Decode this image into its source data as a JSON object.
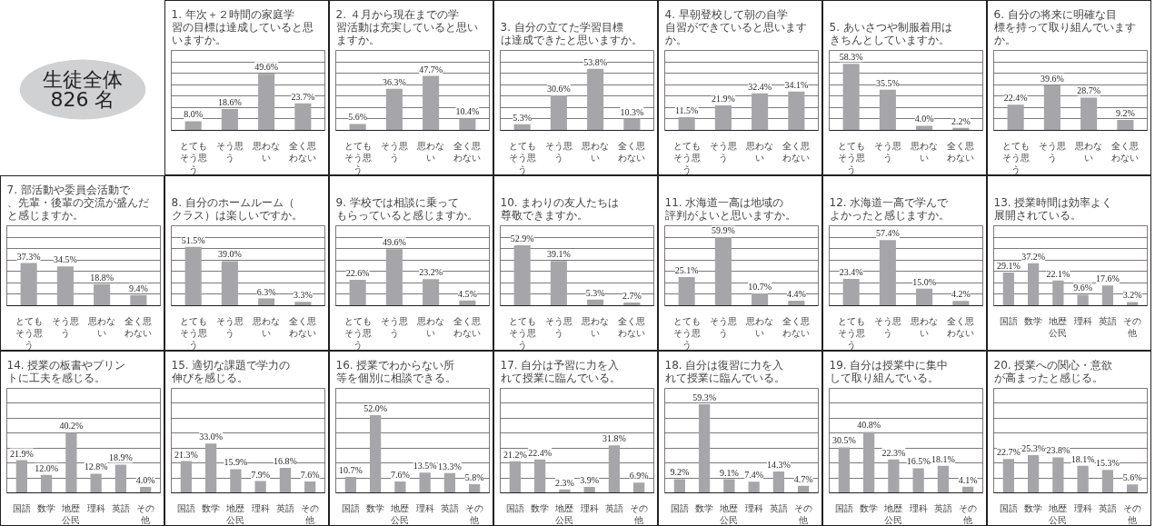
{
  "chart_data": [
    {
      "type": "other",
      "annotations": [
        "生徒全体",
        "826 名"
      ],
      "color": "#d0d1d3"
    },
    {
      "type": "bar",
      "title": "1. 年次＋２時間の家庭学習の目標は達成していると思いますか。",
      "categories": [
        "とてもそう思う",
        "そう思う",
        "思わない",
        "全く思わない"
      ],
      "values": [
        8.0,
        18.6,
        49.6,
        23.7
      ],
      "value_labels": [
        "8.0%",
        "18.6%",
        "49.6%",
        "23.7%"
      ],
      "color": "#a6a6aa",
      "ylim": [
        0,
        70
      ],
      "yticks": [
        {
          "value": 0,
          "label": null
        },
        {
          "value": 10,
          "label": null
        },
        {
          "value": 20,
          "label": null
        },
        {
          "value": 30,
          "label": null
        },
        {
          "value": 40,
          "label": null
        },
        {
          "value": 50,
          "label": null
        },
        {
          "value": 60,
          "label": null
        },
        {
          "value": 70,
          "label": null
        }
      ],
      "grid": "y",
      "tick_labels": "x"
    },
    {
      "type": "bar",
      "title": "2. ４月から現在までの学習活動は充実していると思いますか。",
      "categories": [
        "とてもそう思う",
        "そう思う",
        "思わない",
        "全く思わない"
      ],
      "values": [
        5.6,
        36.3,
        47.7,
        10.4
      ],
      "value_labels": [
        "5.6%",
        "36.3%",
        "47.7%",
        "10.4%"
      ],
      "color": "#a6a6aa",
      "ylim": [
        0,
        70
      ],
      "yticks": [
        {
          "value": 0,
          "label": null
        },
        {
          "value": 10,
          "label": null
        },
        {
          "value": 20,
          "label": null
        },
        {
          "value": 30,
          "label": null
        },
        {
          "value": 40,
          "label": null
        },
        {
          "value": 50,
          "label": null
        },
        {
          "value": 60,
          "label": null
        },
        {
          "value": 70,
          "label": null
        }
      ],
      "grid": "y",
      "tick_labels": "x"
    },
    {
      "type": "bar",
      "title": "3. 自分の立てた学習目標は達成できたと思いますか。",
      "categories": [
        "とてもそう思う",
        "そう思う",
        "思わない",
        "全く思わない"
      ],
      "values": [
        5.3,
        30.6,
        53.8,
        10.3
      ],
      "value_labels": [
        "5.3%",
        "30.6%",
        "53.8%",
        "10.3%"
      ],
      "color": "#a6a6aa",
      "ylim": [
        0,
        70
      ],
      "yticks": [
        {
          "value": 0,
          "label": null
        },
        {
          "value": 10,
          "label": null
        },
        {
          "value": 20,
          "label": null
        },
        {
          "value": 30,
          "label": null
        },
        {
          "value": 40,
          "label": null
        },
        {
          "value": 50,
          "label": null
        },
        {
          "value": 60,
          "label": null
        },
        {
          "value": 70,
          "label": null
        }
      ],
      "grid": "y",
      "tick_labels": "x"
    },
    {
      "type": "bar",
      "title": "4. 早朝登校して朝の自学自習ができていると思いますか。",
      "categories": [
        "とてもそう思う",
        "そう思う",
        "思わない",
        "全く思わない"
      ],
      "values": [
        11.5,
        21.9,
        32.4,
        34.1
      ],
      "value_labels": [
        "11.5%",
        "21.9%",
        "32.4%",
        "34.1%"
      ],
      "color": "#a6a6aa",
      "ylim": [
        0,
        70
      ],
      "yticks": [
        {
          "value": 0,
          "label": null
        },
        {
          "value": 10,
          "label": null
        },
        {
          "value": 20,
          "label": null
        },
        {
          "value": 30,
          "label": null
        },
        {
          "value": 40,
          "label": null
        },
        {
          "value": 50,
          "label": null
        },
        {
          "value": 60,
          "label": null
        },
        {
          "value": 70,
          "label": null
        }
      ],
      "grid": "y",
      "tick_labels": "x"
    },
    {
      "type": "bar",
      "title": "5. あいさつや制服着用はきちんとしていますか。",
      "categories": [
        "とてもそう思う",
        "そう思う",
        "思わない",
        "全く思わない"
      ],
      "values": [
        58.3,
        35.5,
        4.0,
        2.2
      ],
      "value_labels": [
        "58.3%",
        "35.5%",
        "4.0%",
        "2.2%"
      ],
      "color": "#a6a6aa",
      "ylim": [
        0,
        70
      ],
      "yticks": [
        {
          "value": 0,
          "label": null
        },
        {
          "value": 10,
          "label": null
        },
        {
          "value": 20,
          "label": null
        },
        {
          "value": 30,
          "label": null
        },
        {
          "value": 40,
          "label": null
        },
        {
          "value": 50,
          "label": null
        },
        {
          "value": 60,
          "label": null
        },
        {
          "value": 70,
          "label": null
        }
      ],
      "grid": "y",
      "tick_labels": "x"
    },
    {
      "type": "bar",
      "title": "6. 自分の将来に明確な目標を持って取り組んでいますか。",
      "categories": [
        "とてもそう思う",
        "そう思う",
        "思わない",
        "全く思わない"
      ],
      "values": [
        22.4,
        39.6,
        28.7,
        9.2
      ],
      "value_labels": [
        "22.4%",
        "39.6%",
        "28.7%",
        "9.2%"
      ],
      "color": "#a6a6aa",
      "ylim": [
        0,
        70
      ],
      "yticks": [
        {
          "value": 0,
          "label": null
        },
        {
          "value": 10,
          "label": null
        },
        {
          "value": 20,
          "label": null
        },
        {
          "value": 30,
          "label": null
        },
        {
          "value": 40,
          "label": null
        },
        {
          "value": 50,
          "label": null
        },
        {
          "value": 60,
          "label": null
        },
        {
          "value": 70,
          "label": null
        }
      ],
      "grid": "y",
      "tick_labels": "x"
    },
    {
      "type": "bar",
      "title": "7. 部活動や委員会活動で、先輩・後輩の交流が盛んだと感じますか。",
      "categories": [
        "とてもそう思う",
        "そう思う",
        "思わない",
        "全く思わない"
      ],
      "values": [
        37.3,
        34.5,
        18.8,
        9.4
      ],
      "value_labels": [
        "37.3%",
        "34.5%",
        "18.8%",
        "9.4%"
      ],
      "color": "#a6a6aa",
      "ylim": [
        0,
        70
      ],
      "yticks": [
        {
          "value": 0,
          "label": null
        },
        {
          "value": 10,
          "label": null
        },
        {
          "value": 20,
          "label": null
        },
        {
          "value": 30,
          "label": null
        },
        {
          "value": 40,
          "label": null
        },
        {
          "value": 50,
          "label": null
        },
        {
          "value": 60,
          "label": null
        },
        {
          "value": 70,
          "label": null
        }
      ],
      "grid": "y",
      "tick_labels": "x"
    },
    {
      "type": "bar",
      "title": "8. 自分のホームルーム（クラス）は楽しいですか。",
      "categories": [
        "とてもそう思う",
        "そう思う",
        "思わない",
        "全く思わない"
      ],
      "values": [
        51.5,
        39.0,
        6.3,
        3.3
      ],
      "value_labels": [
        "51.5%",
        "39.0%",
        "6.3%",
        "3.3%"
      ],
      "color": "#a6a6aa",
      "ylim": [
        0,
        70
      ],
      "yticks": [
        {
          "value": 0,
          "label": null
        },
        {
          "value": 10,
          "label": null
        },
        {
          "value": 20,
          "label": null
        },
        {
          "value": 30,
          "label": null
        },
        {
          "value": 40,
          "label": null
        },
        {
          "value": 50,
          "label": null
        },
        {
          "value": 60,
          "label": null
        },
        {
          "value": 70,
          "label": null
        }
      ],
      "grid": "y",
      "tick_labels": "x"
    },
    {
      "type": "bar",
      "title": "9. 学校では相談に乗ってもらっていると感じますか。",
      "categories": [
        "とてもそう思う",
        "そう思う",
        "思わない",
        "全く思わない"
      ],
      "values": [
        22.6,
        49.6,
        23.2,
        4.5
      ],
      "value_labels": [
        "22.6%",
        "49.6%",
        "23.2%",
        "4.5%"
      ],
      "color": "#a6a6aa",
      "ylim": [
        0,
        70
      ],
      "yticks": [
        {
          "value": 0,
          "label": null
        },
        {
          "value": 10,
          "label": null
        },
        {
          "value": 20,
          "label": null
        },
        {
          "value": 30,
          "label": null
        },
        {
          "value": 40,
          "label": null
        },
        {
          "value": 50,
          "label": null
        },
        {
          "value": 60,
          "label": null
        },
        {
          "value": 70,
          "label": null
        }
      ],
      "grid": "y",
      "tick_labels": "x"
    },
    {
      "type": "bar",
      "title": "10. まわりの友人たちは尊敬できますか。",
      "categories": [
        "とてもそう思う",
        "そう思う",
        "思わない",
        "全く思わない"
      ],
      "values": [
        52.9,
        39.1,
        5.3,
        2.7
      ],
      "value_labels": [
        "52.9%",
        "39.1%",
        "5.3%",
        "2.7%"
      ],
      "color": "#a6a6aa",
      "ylim": [
        0,
        70
      ],
      "yticks": [
        {
          "value": 0,
          "label": null
        },
        {
          "value": 10,
          "label": null
        },
        {
          "value": 20,
          "label": null
        },
        {
          "value": 30,
          "label": null
        },
        {
          "value": 40,
          "label": null
        },
        {
          "value": 50,
          "label": null
        },
        {
          "value": 60,
          "label": null
        },
        {
          "value": 70,
          "label": null
        }
      ],
      "grid": "y",
      "tick_labels": "x"
    },
    {
      "type": "bar",
      "title": "11. 水海道一高は地域の評判がよいと思いますか。",
      "categories": [
        "とてもそう思う",
        "そう思う",
        "思わない",
        "全く思わない"
      ],
      "values": [
        25.1,
        59.9,
        10.7,
        4.4
      ],
      "value_labels": [
        "25.1%",
        "59.9%",
        "10.7%",
        "4.4%"
      ],
      "color": "#a6a6aa",
      "ylim": [
        0,
        70
      ],
      "yticks": [
        {
          "value": 0,
          "label": null
        },
        {
          "value": 10,
          "label": null
        },
        {
          "value": 20,
          "label": null
        },
        {
          "value": 30,
          "label": null
        },
        {
          "value": 40,
          "label": null
        },
        {
          "value": 50,
          "label": null
        },
        {
          "value": 60,
          "label": null
        },
        {
          "value": 70,
          "label": null
        }
      ],
      "grid": "y",
      "tick_labels": "x"
    },
    {
      "type": "bar",
      "title": "12. 水海道一高で学んでよかったと感じますか。",
      "categories": [
        "とてもそう思う",
        "そう思う",
        "思わない",
        "全く思わない"
      ],
      "values": [
        23.4,
        57.4,
        15.0,
        4.2
      ],
      "value_labels": [
        "23.4%",
        "57.4%",
        "15.0%",
        "4.2%"
      ],
      "color": "#a6a6aa",
      "ylim": [
        0,
        70
      ],
      "yticks": [
        {
          "value": 0,
          "label": null
        },
        {
          "value": 10,
          "label": null
        },
        {
          "value": 20,
          "label": null
        },
        {
          "value": 30,
          "label": null
        },
        {
          "value": 40,
          "label": null
        },
        {
          "value": 50,
          "label": null
        },
        {
          "value": 60,
          "label": null
        },
        {
          "value": 70,
          "label": null
        }
      ],
      "grid": "y",
      "tick_labels": "x"
    },
    {
      "type": "bar",
      "title": "13. 授業時間は効率よく展開されている。",
      "categories": [
        "国語",
        "数学",
        "地歴公民",
        "理科",
        "英語",
        "その他"
      ],
      "values": [
        29.1,
        37.2,
        22.1,
        9.6,
        17.6,
        3.2
      ],
      "value_labels": [
        "29.1%",
        "37.2%",
        "22.1%",
        "9.6%",
        "17.6%",
        "3.2%"
      ],
      "color": "#a6a6aa",
      "ylim": [
        0,
        70
      ],
      "yticks": [
        {
          "value": 0,
          "label": null
        },
        {
          "value": 10,
          "label": null
        },
        {
          "value": 20,
          "label": null
        },
        {
          "value": 30,
          "label": null
        },
        {
          "value": 40,
          "label": null
        },
        {
          "value": 50,
          "label": null
        },
        {
          "value": 60,
          "label": null
        },
        {
          "value": 70,
          "label": null
        }
      ],
      "grid": "y",
      "tick_labels": "x"
    },
    {
      "type": "bar",
      "title": "14. 授業の板書やプリントに工夫を感じる。",
      "categories": [
        "国語",
        "数学",
        "地歴公民",
        "理科",
        "英語",
        "その他"
      ],
      "values": [
        21.9,
        12.0,
        40.2,
        12.8,
        18.9,
        4.0
      ],
      "value_labels": [
        "21.9%",
        "12.0%",
        "40.2%",
        "12.8%",
        "18.9%",
        "4.0%"
      ],
      "color": "#a6a6aa",
      "ylim": [
        0,
        70
      ],
      "yticks": [
        {
          "value": 0,
          "label": null
        },
        {
          "value": 10,
          "label": null
        },
        {
          "value": 20,
          "label": null
        },
        {
          "value": 30,
          "label": null
        },
        {
          "value": 40,
          "label": null
        },
        {
          "value": 50,
          "label": null
        },
        {
          "value": 60,
          "label": null
        },
        {
          "value": 70,
          "label": null
        }
      ],
      "grid": "y",
      "tick_labels": "x"
    },
    {
      "type": "bar",
      "title": "15. 適切な課題で学力の伸びを感じる。",
      "categories": [
        "国語",
        "数学",
        "地歴公民",
        "理科",
        "英語",
        "その他"
      ],
      "values": [
        21.3,
        33.0,
        15.9,
        7.9,
        16.8,
        7.6
      ],
      "value_labels": [
        "21.3%",
        "33.0%",
        "15.9%",
        "7.9%",
        "16.8%",
        "7.6%"
      ],
      "color": "#a6a6aa",
      "ylim": [
        0,
        70
      ],
      "yticks": [
        {
          "value": 0,
          "label": null
        },
        {
          "value": 10,
          "label": null
        },
        {
          "value": 20,
          "label": null
        },
        {
          "value": 30,
          "label": null
        },
        {
          "value": 40,
          "label": null
        },
        {
          "value": 50,
          "label": null
        },
        {
          "value": 60,
          "label": null
        },
        {
          "value": 70,
          "label": null
        }
      ],
      "grid": "y",
      "tick_labels": "x"
    },
    {
      "type": "bar",
      "title": "16. 授業でわからない所等を個別に相談できる。",
      "categories": [
        "国語",
        "数学",
        "地歴公民",
        "理科",
        "英語",
        "その他"
      ],
      "values": [
        10.7,
        52.0,
        7.6,
        13.5,
        13.3,
        5.8
      ],
      "value_labels": [
        "10.7%",
        "52.0%",
        "7.6%",
        "13.5%",
        "13.3%",
        "5.8%"
      ],
      "color": "#a6a6aa",
      "ylim": [
        0,
        70
      ],
      "yticks": [
        {
          "value": 0,
          "label": null
        },
        {
          "value": 10,
          "label": null
        },
        {
          "value": 20,
          "label": null
        },
        {
          "value": 30,
          "label": null
        },
        {
          "value": 40,
          "label": null
        },
        {
          "value": 50,
          "label": null
        },
        {
          "value": 60,
          "label": null
        },
        {
          "value": 70,
          "label": null
        }
      ],
      "grid": "y",
      "tick_labels": "x"
    },
    {
      "type": "bar",
      "title": "17. 自分は予習に力を入れて授業に臨んでいる。",
      "categories": [
        "国語",
        "数学",
        "地歴公民",
        "理科",
        "英語",
        "その他"
      ],
      "values": [
        21.2,
        22.4,
        2.3,
        3.9,
        31.8,
        6.9
      ],
      "value_labels": [
        "21.2%",
        "22.4%",
        "2.3%",
        "3.9%",
        "31.8%",
        "6.9%"
      ],
      "color": "#a6a6aa",
      "ylim": [
        0,
        70
      ],
      "yticks": [
        {
          "value": 0,
          "label": null
        },
        {
          "value": 10,
          "label": null
        },
        {
          "value": 20,
          "label": null
        },
        {
          "value": 30,
          "label": null
        },
        {
          "value": 40,
          "label": null
        },
        {
          "value": 50,
          "label": null
        },
        {
          "value": 60,
          "label": null
        },
        {
          "value": 70,
          "label": null
        }
      ],
      "grid": "y",
      "tick_labels": "x"
    },
    {
      "type": "bar",
      "title": "18. 自分は復習に力を入れて授業に臨んでいる。",
      "categories": [
        "国語",
        "数学",
        "地歴公民",
        "理科",
        "英語",
        "その他"
      ],
      "values": [
        9.2,
        59.3,
        9.1,
        7.4,
        14.3,
        4.7
      ],
      "value_labels": [
        "9.2%",
        "59.3%",
        "9.1%",
        "7.4%",
        "14.3%",
        "4.7%"
      ],
      "color": "#a6a6aa",
      "ylim": [
        0,
        70
      ],
      "yticks": [
        {
          "value": 0,
          "label": null
        },
        {
          "value": 10,
          "label": null
        },
        {
          "value": 20,
          "label": null
        },
        {
          "value": 30,
          "label": null
        },
        {
          "value": 40,
          "label": null
        },
        {
          "value": 50,
          "label": null
        },
        {
          "value": 60,
          "label": null
        },
        {
          "value": 70,
          "label": null
        }
      ],
      "grid": "y",
      "tick_labels": "x"
    },
    {
      "type": "bar",
      "title": "19. 自分は授業中に集中して取り組んでいる。",
      "categories": [
        "国語",
        "数学",
        "地歴公民",
        "理科",
        "英語",
        "その他"
      ],
      "values": [
        30.5,
        40.8,
        22.3,
        16.5,
        18.1,
        4.1
      ],
      "value_labels": [
        "30.5%",
        "40.8%",
        "22.3%",
        "16.5%",
        "18.1%",
        "4.1%"
      ],
      "color": "#a6a6aa",
      "ylim": [
        0,
        70
      ],
      "yticks": [
        {
          "value": 0,
          "label": null
        },
        {
          "value": 10,
          "label": null
        },
        {
          "value": 20,
          "label": null
        },
        {
          "value": 30,
          "label": null
        },
        {
          "value": 40,
          "label": null
        },
        {
          "value": 50,
          "label": null
        },
        {
          "value": 60,
          "label": null
        },
        {
          "value": 70,
          "label": null
        }
      ],
      "grid": "y",
      "tick_labels": "x"
    },
    {
      "type": "bar",
      "title": "20. 授業への関心・意欲が高まったと感じる。",
      "categories": [
        "国語",
        "数学",
        "地歴公民",
        "理科",
        "英語",
        "その他"
      ],
      "values": [
        22.7,
        25.3,
        23.8,
        18.1,
        15.3,
        5.6
      ],
      "value_labels": [
        "22.7%",
        "25.3%",
        "23.8%",
        "18.1%",
        "15.3%",
        "5.6%"
      ],
      "color": "#a6a6aa",
      "ylim": [
        0,
        70
      ],
      "yticks": [
        {
          "value": 0,
          "label": null
        },
        {
          "value": 10,
          "label": null
        },
        {
          "value": 20,
          "label": null
        },
        {
          "value": 30,
          "label": null
        },
        {
          "value": 40,
          "label": null
        },
        {
          "value": 50,
          "label": null
        },
        {
          "value": 60,
          "label": null
        },
        {
          "value": 70,
          "label": null
        }
      ],
      "grid": "y",
      "tick_labels": "x"
    }
  ]
}
